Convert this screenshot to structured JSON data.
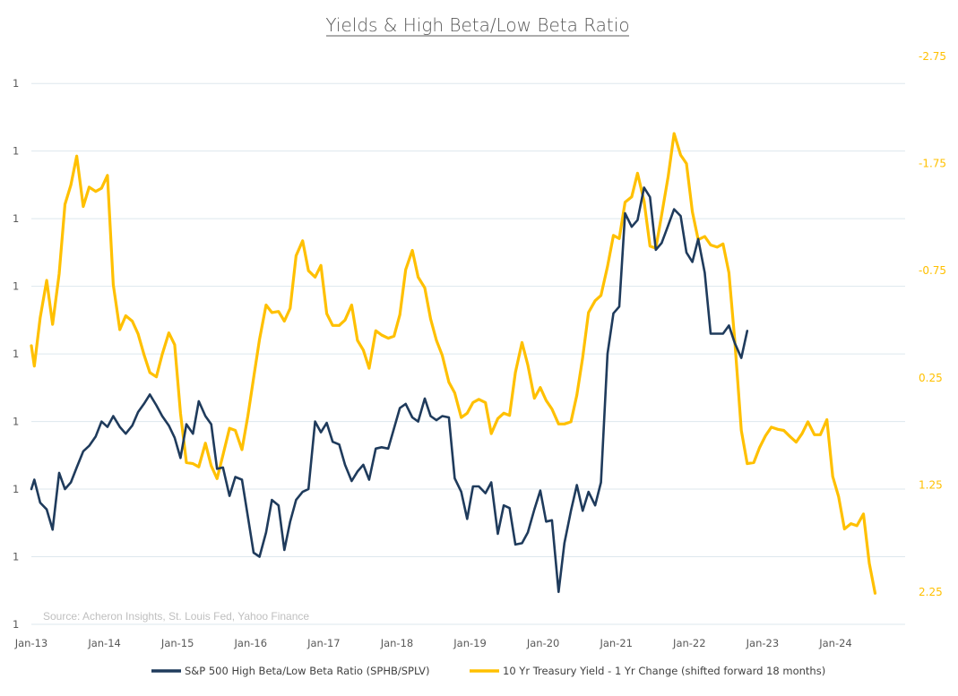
{
  "chart_data": {
    "type": "line",
    "title": "Yields & High Beta/Low Beta Ratio",
    "source": "Source: Acheron Insights, St. Louis Fed, Yahoo Finance",
    "colors": {
      "ratio": "#1f3b5c",
      "yield": "#ffc000",
      "grid": "#dde7ee",
      "text": "#595959"
    },
    "x_range": [
      2013.0,
      2024.95
    ],
    "x_ticks": [
      {
        "label": "Jan-13",
        "x": 2013.0
      },
      {
        "label": "Jan-14",
        "x": 2014.0
      },
      {
        "label": "Jan-15",
        "x": 2015.0
      },
      {
        "label": "Jan-16",
        "x": 2016.0
      },
      {
        "label": "Jan-17",
        "x": 2017.0
      },
      {
        "label": "Jan-18",
        "x": 2018.0
      },
      {
        "label": "Jan-19",
        "x": 2019.0
      },
      {
        "label": "Jan-20",
        "x": 2020.0
      },
      {
        "label": "Jan-21",
        "x": 2021.0
      },
      {
        "label": "Jan-22",
        "x": 2022.0
      },
      {
        "label": "Jan-23",
        "x": 2023.0
      },
      {
        "label": "Jan-24",
        "x": 2024.0
      }
    ],
    "left_axis": {
      "range": [
        0.75,
        1.17
      ],
      "ticks": [
        0.75,
        0.8,
        0.85,
        0.9,
        0.95,
        1.0,
        1.05,
        1.1,
        1.15
      ],
      "tick_labels": [
        "1",
        "1",
        "1",
        "1",
        "1",
        "1",
        "1",
        "1",
        "1"
      ]
    },
    "right_axis": {
      "inverted": true,
      "range": [
        -2.75,
        2.55
      ],
      "ticks": [
        -2.75,
        -1.75,
        -0.75,
        0.25,
        1.25,
        2.25
      ],
      "tick_labels": [
        "-2.75",
        "-1.75",
        "-0.75",
        "0.25",
        "1.25",
        "2.25"
      ]
    },
    "series": [
      {
        "name": "S&P 500 High Beta/Low Beta Ratio (SPHB/SPLV)",
        "axis": "left",
        "points": [
          [
            2013.0,
            0.85
          ],
          [
            2013.04,
            0.857
          ],
          [
            2013.12,
            0.84
          ],
          [
            2013.21,
            0.835
          ],
          [
            2013.29,
            0.82
          ],
          [
            2013.38,
            0.862
          ],
          [
            2013.46,
            0.85
          ],
          [
            2013.54,
            0.855
          ],
          [
            2013.62,
            0.866
          ],
          [
            2013.71,
            0.878
          ],
          [
            2013.79,
            0.882
          ],
          [
            2013.88,
            0.889
          ],
          [
            2013.96,
            0.9
          ],
          [
            2014.04,
            0.896
          ],
          [
            2014.12,
            0.904
          ],
          [
            2014.21,
            0.896
          ],
          [
            2014.29,
            0.891
          ],
          [
            2014.38,
            0.897
          ],
          [
            2014.46,
            0.907
          ],
          [
            2014.54,
            0.913
          ],
          [
            2014.62,
            0.92
          ],
          [
            2014.71,
            0.912
          ],
          [
            2014.79,
            0.904
          ],
          [
            2014.88,
            0.897
          ],
          [
            2014.96,
            0.888
          ],
          [
            2015.04,
            0.873
          ],
          [
            2015.12,
            0.898
          ],
          [
            2015.21,
            0.891
          ],
          [
            2015.29,
            0.915
          ],
          [
            2015.38,
            0.904
          ],
          [
            2015.46,
            0.898
          ],
          [
            2015.54,
            0.865
          ],
          [
            2015.62,
            0.866
          ],
          [
            2015.71,
            0.845
          ],
          [
            2015.79,
            0.859
          ],
          [
            2015.88,
            0.857
          ],
          [
            2015.96,
            0.83
          ],
          [
            2016.04,
            0.803
          ],
          [
            2016.12,
            0.8
          ],
          [
            2016.21,
            0.818
          ],
          [
            2016.29,
            0.842
          ],
          [
            2016.38,
            0.838
          ],
          [
            2016.46,
            0.805
          ],
          [
            2016.54,
            0.826
          ],
          [
            2016.62,
            0.842
          ],
          [
            2016.71,
            0.848
          ],
          [
            2016.79,
            0.85
          ],
          [
            2016.88,
            0.9
          ],
          [
            2016.96,
            0.892
          ],
          [
            2017.04,
            0.899
          ],
          [
            2017.12,
            0.885
          ],
          [
            2017.21,
            0.883
          ],
          [
            2017.29,
            0.868
          ],
          [
            2017.38,
            0.856
          ],
          [
            2017.46,
            0.863
          ],
          [
            2017.54,
            0.868
          ],
          [
            2017.62,
            0.857
          ],
          [
            2017.71,
            0.88
          ],
          [
            2017.79,
            0.881
          ],
          [
            2017.88,
            0.88
          ],
          [
            2017.96,
            0.895
          ],
          [
            2018.04,
            0.91
          ],
          [
            2018.12,
            0.913
          ],
          [
            2018.21,
            0.903
          ],
          [
            2018.29,
            0.9
          ],
          [
            2018.38,
            0.917
          ],
          [
            2018.46,
            0.904
          ],
          [
            2018.54,
            0.901
          ],
          [
            2018.62,
            0.904
          ],
          [
            2018.71,
            0.903
          ],
          [
            2018.79,
            0.858
          ],
          [
            2018.88,
            0.848
          ],
          [
            2018.96,
            0.828
          ],
          [
            2019.04,
            0.852
          ],
          [
            2019.12,
            0.852
          ],
          [
            2019.21,
            0.847
          ],
          [
            2019.29,
            0.855
          ],
          [
            2019.38,
            0.817
          ],
          [
            2019.46,
            0.838
          ],
          [
            2019.54,
            0.836
          ],
          [
            2019.62,
            0.809
          ],
          [
            2019.71,
            0.81
          ],
          [
            2019.79,
            0.818
          ],
          [
            2019.88,
            0.835
          ],
          [
            2019.96,
            0.849
          ],
          [
            2020.04,
            0.826
          ],
          [
            2020.12,
            0.827
          ],
          [
            2020.21,
            0.774
          ],
          [
            2020.29,
            0.81
          ],
          [
            2020.38,
            0.834
          ],
          [
            2020.46,
            0.853
          ],
          [
            2020.54,
            0.834
          ],
          [
            2020.62,
            0.848
          ],
          [
            2020.71,
            0.838
          ],
          [
            2020.79,
            0.855
          ],
          [
            2020.88,
            0.95
          ],
          [
            2020.96,
            0.98
          ],
          [
            2021.04,
            0.985
          ],
          [
            2021.12,
            1.054
          ],
          [
            2021.21,
            1.044
          ],
          [
            2021.29,
            1.049
          ],
          [
            2021.38,
            1.073
          ],
          [
            2021.46,
            1.066
          ],
          [
            2021.54,
            1.027
          ],
          [
            2021.62,
            1.032
          ],
          [
            2021.71,
            1.045
          ],
          [
            2021.79,
            1.057
          ],
          [
            2021.88,
            1.052
          ],
          [
            2021.96,
            1.025
          ],
          [
            2022.04,
            1.018
          ],
          [
            2022.12,
            1.035
          ],
          [
            2022.21,
            1.01
          ],
          [
            2022.29,
            0.965
          ],
          [
            2022.38,
            0.965
          ],
          [
            2022.46,
            0.965
          ],
          [
            2022.54,
            0.971
          ],
          [
            2022.62,
            0.958
          ],
          [
            2022.71,
            0.947
          ],
          [
            2022.79,
            0.967
          ]
        ]
      },
      {
        "name": "10 Yr Treasury Yield - 1 Yr Change (shifted forward 18 months)",
        "axis": "right",
        "points": [
          [
            2013.0,
            -0.05
          ],
          [
            2013.04,
            0.14
          ],
          [
            2013.12,
            -0.31
          ],
          [
            2013.21,
            -0.66
          ],
          [
            2013.29,
            -0.25
          ],
          [
            2013.38,
            -0.72
          ],
          [
            2013.46,
            -1.37
          ],
          [
            2013.54,
            -1.55
          ],
          [
            2013.62,
            -1.82
          ],
          [
            2013.71,
            -1.35
          ],
          [
            2013.79,
            -1.53
          ],
          [
            2013.88,
            -1.49
          ],
          [
            2013.96,
            -1.52
          ],
          [
            2014.04,
            -1.64
          ],
          [
            2014.12,
            -0.62
          ],
          [
            2014.21,
            -0.2
          ],
          [
            2014.29,
            -0.33
          ],
          [
            2014.38,
            -0.28
          ],
          [
            2014.46,
            -0.16
          ],
          [
            2014.54,
            0.03
          ],
          [
            2014.62,
            0.2
          ],
          [
            2014.71,
            0.24
          ],
          [
            2014.79,
            0.03
          ],
          [
            2014.88,
            -0.17
          ],
          [
            2014.96,
            -0.06
          ],
          [
            2015.04,
            0.58
          ],
          [
            2015.12,
            1.04
          ],
          [
            2015.21,
            1.05
          ],
          [
            2015.29,
            1.08
          ],
          [
            2015.38,
            0.86
          ],
          [
            2015.46,
            1.07
          ],
          [
            2015.54,
            1.19
          ],
          [
            2015.62,
            0.97
          ],
          [
            2015.71,
            0.72
          ],
          [
            2015.79,
            0.74
          ],
          [
            2015.88,
            0.92
          ],
          [
            2015.96,
            0.61
          ],
          [
            2016.04,
            0.25
          ],
          [
            2016.12,
            -0.11
          ],
          [
            2016.21,
            -0.43
          ],
          [
            2016.29,
            -0.36
          ],
          [
            2016.38,
            -0.37
          ],
          [
            2016.46,
            -0.28
          ],
          [
            2016.54,
            -0.4
          ],
          [
            2016.62,
            -0.89
          ],
          [
            2016.71,
            -1.03
          ],
          [
            2016.79,
            -0.75
          ],
          [
            2016.88,
            -0.69
          ],
          [
            2016.96,
            -0.8
          ],
          [
            2017.04,
            -0.35
          ],
          [
            2017.12,
            -0.24
          ],
          [
            2017.21,
            -0.24
          ],
          [
            2017.29,
            -0.29
          ],
          [
            2017.38,
            -0.43
          ],
          [
            2017.46,
            -0.1
          ],
          [
            2017.54,
            -0.01
          ],
          [
            2017.62,
            0.16
          ],
          [
            2017.71,
            -0.19
          ],
          [
            2017.79,
            -0.15
          ],
          [
            2017.88,
            -0.12
          ],
          [
            2017.96,
            -0.14
          ],
          [
            2018.04,
            -0.34
          ],
          [
            2018.12,
            -0.76
          ],
          [
            2018.21,
            -0.94
          ],
          [
            2018.29,
            -0.69
          ],
          [
            2018.38,
            -0.59
          ],
          [
            2018.46,
            -0.3
          ],
          [
            2018.54,
            -0.1
          ],
          [
            2018.62,
            0.04
          ],
          [
            2018.71,
            0.29
          ],
          [
            2018.79,
            0.39
          ],
          [
            2018.88,
            0.62
          ],
          [
            2018.96,
            0.58
          ],
          [
            2019.04,
            0.48
          ],
          [
            2019.12,
            0.45
          ],
          [
            2019.21,
            0.48
          ],
          [
            2019.29,
            0.77
          ],
          [
            2019.38,
            0.63
          ],
          [
            2019.46,
            0.58
          ],
          [
            2019.54,
            0.6
          ],
          [
            2019.62,
            0.2
          ],
          [
            2019.71,
            -0.08
          ],
          [
            2019.79,
            0.13
          ],
          [
            2019.88,
            0.44
          ],
          [
            2019.96,
            0.34
          ],
          [
            2020.04,
            0.46
          ],
          [
            2020.12,
            0.54
          ],
          [
            2020.21,
            0.68
          ],
          [
            2020.29,
            0.68
          ],
          [
            2020.38,
            0.66
          ],
          [
            2020.46,
            0.41
          ],
          [
            2020.54,
            0.06
          ],
          [
            2020.62,
            -0.36
          ],
          [
            2020.71,
            -0.47
          ],
          [
            2020.79,
            -0.52
          ],
          [
            2020.88,
            -0.79
          ],
          [
            2020.96,
            -1.08
          ],
          [
            2021.04,
            -1.05
          ],
          [
            2021.12,
            -1.39
          ],
          [
            2021.21,
            -1.44
          ],
          [
            2021.29,
            -1.66
          ],
          [
            2021.38,
            -1.4
          ],
          [
            2021.46,
            -0.98
          ],
          [
            2021.54,
            -0.96
          ],
          [
            2021.62,
            -1.27
          ],
          [
            2021.71,
            -1.63
          ],
          [
            2021.79,
            -2.03
          ],
          [
            2021.88,
            -1.83
          ],
          [
            2021.96,
            -1.75
          ],
          [
            2022.04,
            -1.3
          ],
          [
            2022.12,
            -1.04
          ],
          [
            2022.21,
            -1.07
          ],
          [
            2022.29,
            -0.99
          ],
          [
            2022.38,
            -0.97
          ],
          [
            2022.46,
            -1.0
          ],
          [
            2022.54,
            -0.73
          ],
          [
            2022.62,
            -0.1
          ],
          [
            2022.71,
            0.74
          ],
          [
            2022.79,
            1.05
          ],
          [
            2022.88,
            1.04
          ],
          [
            2022.96,
            0.9
          ],
          [
            2023.04,
            0.79
          ],
          [
            2023.12,
            0.71
          ],
          [
            2023.21,
            0.73
          ],
          [
            2023.29,
            0.74
          ],
          [
            2023.38,
            0.8
          ],
          [
            2023.46,
            0.85
          ],
          [
            2023.54,
            0.77
          ],
          [
            2023.62,
            0.66
          ],
          [
            2023.71,
            0.78
          ],
          [
            2023.79,
            0.78
          ],
          [
            2023.88,
            0.64
          ],
          [
            2023.96,
            1.17
          ],
          [
            2024.04,
            1.36
          ],
          [
            2024.12,
            1.66
          ],
          [
            2024.21,
            1.61
          ],
          [
            2024.29,
            1.63
          ],
          [
            2024.38,
            1.52
          ],
          [
            2024.46,
            1.98
          ],
          [
            2024.54,
            2.26
          ]
        ]
      }
    ]
  }
}
